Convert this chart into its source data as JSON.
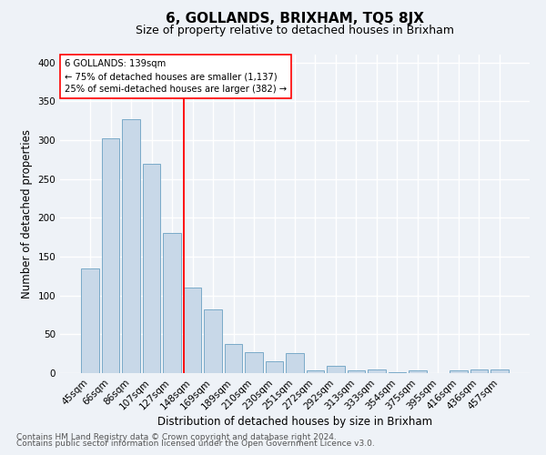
{
  "title": "6, GOLLANDS, BRIXHAM, TQ5 8JX",
  "subtitle": "Size of property relative to detached houses in Brixham",
  "xlabel": "Distribution of detached houses by size in Brixham",
  "ylabel": "Number of detached properties",
  "footnote1": "Contains HM Land Registry data © Crown copyright and database right 2024.",
  "footnote2": "Contains public sector information licensed under the Open Government Licence v3.0.",
  "categories": [
    "45sqm",
    "66sqm",
    "86sqm",
    "107sqm",
    "127sqm",
    "148sqm",
    "169sqm",
    "189sqm",
    "210sqm",
    "230sqm",
    "251sqm",
    "272sqm",
    "292sqm",
    "313sqm",
    "333sqm",
    "354sqm",
    "375sqm",
    "395sqm",
    "416sqm",
    "436sqm",
    "457sqm"
  ],
  "values": [
    135,
    302,
    327,
    270,
    180,
    110,
    82,
    38,
    27,
    15,
    26,
    4,
    9,
    3,
    5,
    1,
    3,
    0,
    3,
    5,
    5
  ],
  "bar_color": "#c8d8e8",
  "bar_edge_color": "#7aaac8",
  "annotation_line1": "6 GOLLANDS: 139sqm",
  "annotation_line2": "← 75% of detached houses are smaller (1,137)",
  "annotation_line3": "25% of semi-detached houses are larger (382) →",
  "bg_color": "#eef2f7",
  "ylim": [
    0,
    410
  ],
  "yticks": [
    0,
    50,
    100,
    150,
    200,
    250,
    300,
    350,
    400
  ],
  "grid_color": "#ffffff",
  "title_fontsize": 11,
  "subtitle_fontsize": 9,
  "xlabel_fontsize": 8.5,
  "ylabel_fontsize": 8.5,
  "tick_fontsize": 7.5,
  "footnote_fontsize": 6.5,
  "redline_sqm": 139,
  "sqm_min": 127,
  "sqm_max": 148,
  "redline_index": 4
}
